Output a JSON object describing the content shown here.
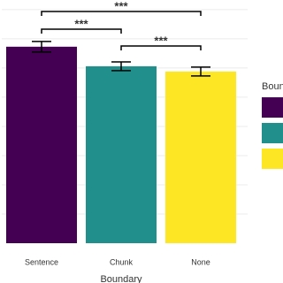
{
  "chart_data": {
    "type": "bar",
    "x_label": "Boundary",
    "legend_title": "Boundary",
    "categories": [
      "Sentence",
      "Chunk",
      "None"
    ],
    "values": [
      6.73,
      6.06,
      5.88
    ],
    "errors": [
      0.18,
      0.15,
      0.15
    ],
    "colors": [
      "#440154",
      "#21908c",
      "#fde725"
    ],
    "ylim": [
      0,
      8.33
    ],
    "yticks": [
      1,
      2,
      3,
      4,
      5,
      6,
      7,
      8
    ],
    "grid": true,
    "annotations": [
      {
        "text": "***",
        "from": 0,
        "to": 2
      },
      {
        "text": "***",
        "from": 0,
        "to": 1
      },
      {
        "text": "***",
        "from": 1,
        "to": 2
      }
    ]
  }
}
